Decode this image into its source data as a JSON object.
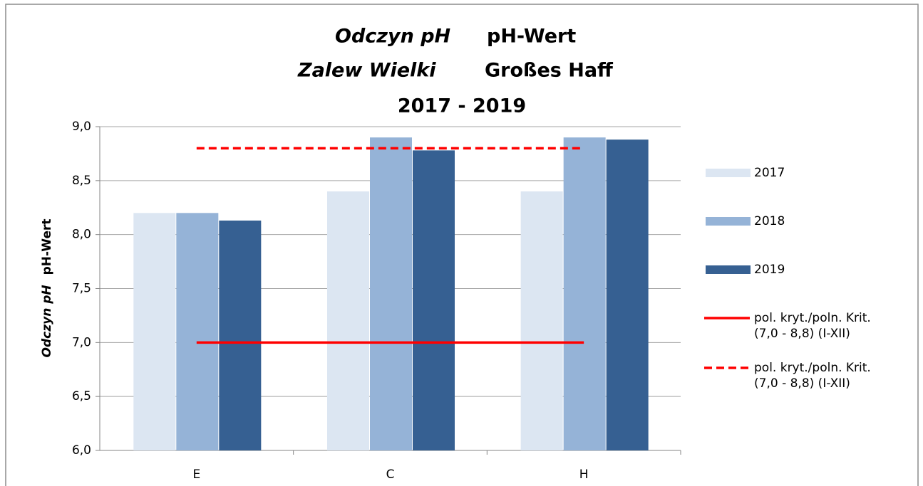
{
  "chart_data": {
    "type": "bar",
    "title": [
      {
        "pl": "Odczyn pH",
        "de": "pH-Wert"
      },
      {
        "pl": "Zalew Wielki",
        "de": "Großes Haff"
      }
    ],
    "subtitle": "2017 - 2019",
    "y_label": {
      "pl": "Odczyn pH",
      "de": "pH-Wert"
    },
    "categories": [
      "E",
      "C",
      "H"
    ],
    "series": [
      {
        "name": "2017",
        "color": "#dce6f2",
        "values": [
          8.2,
          8.4,
          8.4
        ]
      },
      {
        "name": "2018",
        "color": "#95b3d7",
        "values": [
          8.2,
          8.9,
          8.9
        ]
      },
      {
        "name": "2019",
        "color": "#366092",
        "values": [
          8.13,
          8.78,
          8.88
        ]
      }
    ],
    "lines": [
      {
        "name": "pol. kryt./poln. Krit. (7,0 - 8,8) (I-XII)",
        "color": "#ff0000",
        "style": "solid",
        "values": [
          7.0,
          7.0,
          7.0
        ]
      },
      {
        "name": "pol. kryt./poln. Krit. (7,0 - 8,8) (I-XII)",
        "color": "#ff0000",
        "style": "dashed",
        "values": [
          8.8,
          8.8,
          8.8
        ]
      }
    ],
    "ylim": [
      6,
      9
    ],
    "yticks": [
      {
        "value": 6,
        "label": "6,0"
      },
      {
        "value": 6.5,
        "label": "6,5"
      },
      {
        "value": 7,
        "label": "7,0"
      },
      {
        "value": 7.5,
        "label": "7,5"
      },
      {
        "value": 8,
        "label": "8,0"
      },
      {
        "value": 8.5,
        "label": "8,5"
      },
      {
        "value": 9,
        "label": "9,0"
      }
    ],
    "grid": true,
    "legend": "right"
  }
}
